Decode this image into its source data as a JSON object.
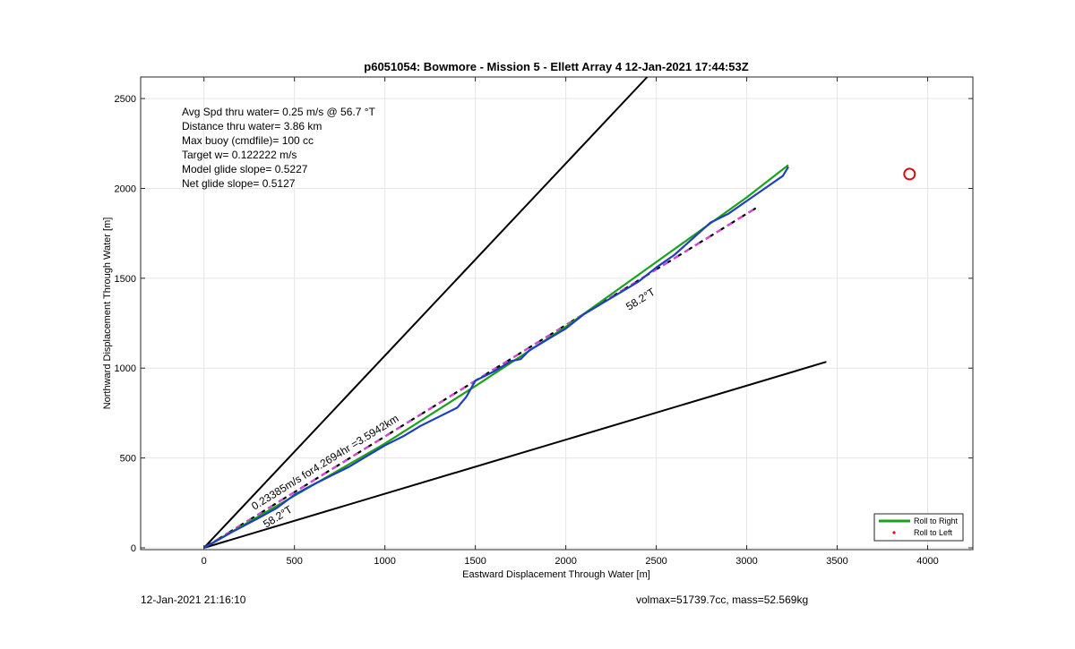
{
  "chart_data": {
    "type": "line",
    "title": "p6051054: Bowmore - Mission 5 - Ellett Array 4 12-Jan-2021 17:44:53Z",
    "xlabel": "Eastward Displacement Through Water [m]",
    "ylabel": "Northward Displacement Through Water [m]",
    "xlim": [
      -350,
      4250
    ],
    "ylim": [
      -10,
      2620
    ],
    "xticks": [
      0,
      500,
      1000,
      1500,
      2000,
      2500,
      3000,
      3500,
      4000
    ],
    "yticks": [
      0,
      500,
      1000,
      1500,
      2000,
      2500
    ],
    "grid": true,
    "annotations": [
      "Avg Spd thru water=  0.25 m/s @  56.7 °T",
      "Distance thru water=  3.86 km",
      "Max buoy (cmdfile)= 100 cc",
      "Target w= 0.122222 m/s",
      "Model glide slope= 0.5227",
      "Net glide slope= 0.5127"
    ],
    "line_labels": {
      "speed": "0.23385m/s for4.2694hr =3.5942km",
      "heading_low": "58.2°T",
      "heading_high": "58.2°T"
    },
    "legend": {
      "position": "bottom-right",
      "entries": [
        {
          "label": "Roll to Right",
          "color": "#1aa31a",
          "style": "line"
        },
        {
          "label": "Roll to Left",
          "color": "#ff0000",
          "style": "dot"
        }
      ]
    },
    "series": [
      {
        "color": "#000000",
        "style": "solid",
        "x": [
          0,
          2450
        ],
        "y": [
          0,
          2620
        ]
      },
      {
        "color": "#000000",
        "style": "solid",
        "x": [
          0,
          3440
        ],
        "y": [
          0,
          1035
        ]
      },
      {
        "color": "#000000",
        "style": "dashed",
        "x": [
          0,
          3050
        ],
        "y": [
          0,
          1890
        ]
      },
      {
        "color": "#e040e0",
        "style": "dashed",
        "x": [
          0,
          3050
        ],
        "y": [
          0,
          1890
        ]
      },
      {
        "color": "#1aa31a",
        "style": "solid",
        "x": [
          0,
          500,
          1000,
          1500,
          2000,
          2500,
          3000,
          3230
        ],
        "y": [
          0,
          290,
          580,
          900,
          1230,
          1590,
          1950,
          2130
        ]
      },
      {
        "color": "#1f3fbf",
        "style": "solid",
        "x": [
          0,
          150,
          300,
          400,
          500,
          600,
          700,
          800,
          900,
          1000,
          1100,
          1200,
          1300,
          1400,
          1450,
          1500,
          1600,
          1700,
          1750,
          1800,
          1900,
          2000,
          2100,
          2200,
          2300,
          2400,
          2500,
          2600,
          2700,
          2800,
          2900,
          3000,
          3100,
          3200,
          3230
        ],
        "y": [
          0,
          85,
          165,
          220,
          295,
          350,
          400,
          450,
          510,
          570,
          620,
          680,
          730,
          780,
          840,
          930,
          980,
          1040,
          1050,
          1100,
          1160,
          1220,
          1300,
          1360,
          1420,
          1480,
          1560,
          1630,
          1720,
          1810,
          1860,
          1930,
          2000,
          2070,
          2120
        ]
      },
      {
        "color": "#d01010",
        "style": "circle",
        "x": [
          3900
        ],
        "y": [
          2080
        ]
      }
    ]
  },
  "footer": {
    "left": "12-Jan-2021 21:16:10",
    "right": "volmax=51739.7cc, mass=52.569kg"
  }
}
